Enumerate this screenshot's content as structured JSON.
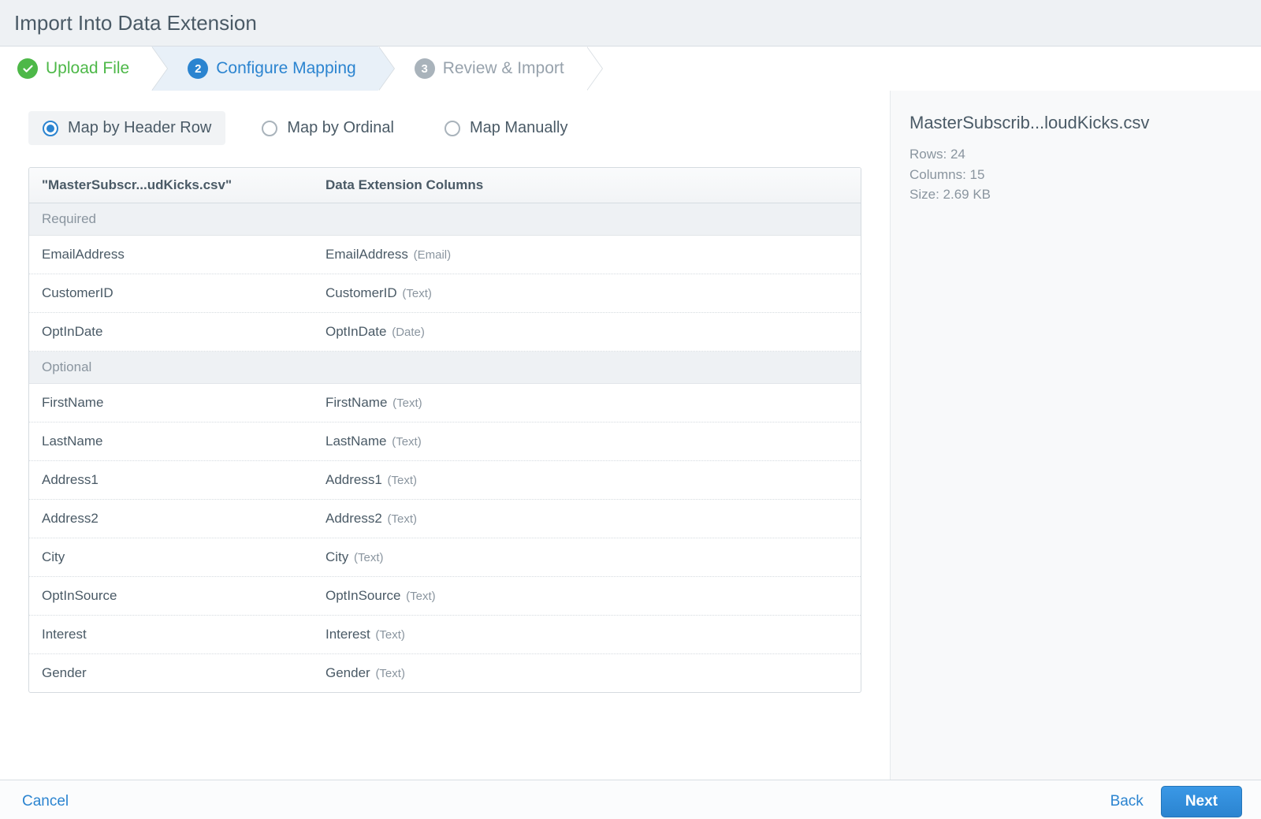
{
  "colors": {
    "page_bg": "#ffffff",
    "header_bg": "#eef1f4",
    "header_border": "#d8dde3",
    "title_text": "#4a5a66",
    "step_done": "#4db848",
    "step_current": "#2b84d0",
    "step_current_bg": "#e8f0f8",
    "step_future": "#97a2ac",
    "step_divider": "#d5dbe0",
    "radio_selected_bg": "#f1f3f5",
    "radio_border": "#a9b3bb",
    "table_border": "#d5dbe0",
    "table_header_bg_top": "#fafbfc",
    "table_header_bg_bottom": "#f2f4f6",
    "section_bg": "#eef1f4",
    "muted_text": "#8a959f",
    "body_text": "#4a5a66",
    "row_divider": "#d5dbe0",
    "sidebar_bg": "#f8f9fa",
    "footer_bg": "#fbfcfd",
    "footer_border": "#d8dde3",
    "link": "#2b84d0",
    "primary_btn_top": "#3a98e6",
    "primary_btn_bottom": "#2b84d0",
    "primary_btn_border": "#2374b8"
  },
  "typography": {
    "title_fontsize": 26,
    "step_fontsize": 21,
    "radio_fontsize": 20,
    "table_header_fontsize": 17,
    "row_fontsize": 17,
    "dtype_fontsize": 15,
    "side_title_fontsize": 22,
    "side_meta_fontsize": 17,
    "footer_fontsize": 19
  },
  "title": "Import Into Data Extension",
  "wizard": {
    "steps": [
      {
        "label": "Upload File",
        "marker": "✓",
        "state": "done"
      },
      {
        "label": "Configure Mapping",
        "marker": "2",
        "state": "current"
      },
      {
        "label": "Review & Import",
        "marker": "3",
        "state": "future"
      }
    ]
  },
  "mapping": {
    "methods": [
      {
        "label": "Map by Header Row",
        "selected": true
      },
      {
        "label": "Map by Ordinal",
        "selected": false
      },
      {
        "label": "Map Manually",
        "selected": false
      }
    ],
    "source_header": "\"MasterSubscr...udKicks.csv\"",
    "dest_header": "Data Extension Columns",
    "sections": [
      {
        "title": "Required",
        "rows": [
          {
            "source": "EmailAddress",
            "dest": "EmailAddress",
            "dtype": "(Email)"
          },
          {
            "source": "CustomerID",
            "dest": "CustomerID",
            "dtype": "(Text)"
          },
          {
            "source": "OptInDate",
            "dest": "OptInDate",
            "dtype": "(Date)"
          }
        ]
      },
      {
        "title": "Optional",
        "rows": [
          {
            "source": "FirstName",
            "dest": "FirstName",
            "dtype": "(Text)"
          },
          {
            "source": "LastName",
            "dest": "LastName",
            "dtype": "(Text)"
          },
          {
            "source": "Address1",
            "dest": "Address1",
            "dtype": "(Text)"
          },
          {
            "source": "Address2",
            "dest": "Address2",
            "dtype": "(Text)"
          },
          {
            "source": "City",
            "dest": "City",
            "dtype": "(Text)"
          },
          {
            "source": "OptInSource",
            "dest": "OptInSource",
            "dtype": "(Text)"
          },
          {
            "source": "Interest",
            "dest": "Interest",
            "dtype": "(Text)"
          },
          {
            "source": "Gender",
            "dest": "Gender",
            "dtype": "(Text)"
          }
        ]
      }
    ]
  },
  "sidebar": {
    "filename": "MasterSubscrib...loudKicks.csv",
    "rows_label": "Rows:",
    "rows_value": "24",
    "cols_label": "Columns:",
    "cols_value": "15",
    "size_label": "Size:",
    "size_value": "2.69 KB"
  },
  "footer": {
    "cancel": "Cancel",
    "back": "Back",
    "next": "Next"
  }
}
